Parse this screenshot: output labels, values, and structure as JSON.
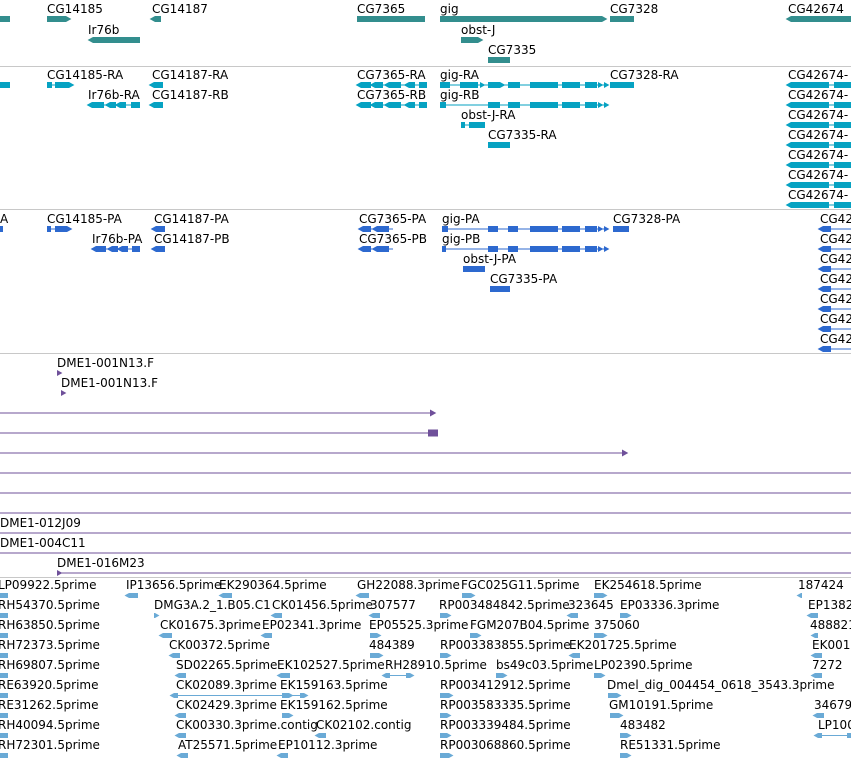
{
  "colors": {
    "gene": "#338e8e",
    "transcript": "#06a2c2",
    "protein": "#2d69cf",
    "clone": "#6f509a",
    "est": "#6aaad6",
    "divider": "#c8c8c8"
  },
  "tracks": [
    {
      "id": "genes",
      "color": "#338e8e",
      "features": [
        {
          "label": "CG14185"
        },
        {
          "label": "CG14187"
        },
        {
          "label": "Ir76b"
        },
        {
          "label": "CG7365"
        },
        {
          "label": "gig"
        },
        {
          "label": "obst-J"
        },
        {
          "label": "CG7335"
        },
        {
          "label": "CG7328"
        },
        {
          "label": "CG42674"
        }
      ]
    },
    {
      "id": "transcripts",
      "color": "#06a2c2",
      "features": [
        {
          "label": "CG14185-RA"
        },
        {
          "label": "CG14187-RA"
        },
        {
          "label": "CG14187-RB"
        },
        {
          "label": "Ir76b-RA"
        },
        {
          "label": "CG7365-RA"
        },
        {
          "label": "CG7365-RB"
        },
        {
          "label": "gig-RA"
        },
        {
          "label": "gig-RB"
        },
        {
          "label": "obst-J-RA"
        },
        {
          "label": "CG7335-RA"
        },
        {
          "label": "CG7328-RA"
        },
        {
          "label": "CG42674-"
        },
        {
          "label": "CG42674-"
        },
        {
          "label": "CG42674-"
        },
        {
          "label": "CG42674-"
        },
        {
          "label": "CG42674-"
        },
        {
          "label": "CG42674-"
        },
        {
          "label": "CG42674-"
        }
      ]
    },
    {
      "id": "proteins",
      "color": "#2d69cf",
      "features": [
        {
          "label": "A"
        },
        {
          "label": "CG14185-PA"
        },
        {
          "label": "CG14187-PA"
        },
        {
          "label": "CG14187-PB"
        },
        {
          "label": "Ir76b-PA"
        },
        {
          "label": "CG7365-PA"
        },
        {
          "label": "CG7365-PB"
        },
        {
          "label": "gig-PA"
        },
        {
          "label": "gig-PB"
        },
        {
          "label": "obst-J-PA"
        },
        {
          "label": "CG7335-PA"
        },
        {
          "label": "CG7328-PA"
        },
        {
          "label": "CG42"
        },
        {
          "label": "CG42"
        },
        {
          "label": "CG42"
        },
        {
          "label": "CG42"
        },
        {
          "label": "CG42"
        },
        {
          "label": "CG42"
        },
        {
          "label": "CG42"
        }
      ]
    },
    {
      "id": "clones",
      "color": "#6f509a",
      "features": [
        {
          "label": "DME1-001N13.F"
        },
        {
          "label": "DME1-001N13.F"
        },
        {
          "label": "DME1-012J09"
        },
        {
          "label": "DME1-004C11"
        },
        {
          "label": "DME1-016M23"
        }
      ]
    },
    {
      "id": "ests",
      "color": "#6aaad6",
      "features": [
        {
          "label": "LP09922.5prime"
        },
        {
          "label": "IP13656.5prime"
        },
        {
          "label": "EK290364.5prime"
        },
        {
          "label": "GH22088.3prime"
        },
        {
          "label": "FGC025G11.5prime"
        },
        {
          "label": "EK254618.5prime"
        },
        {
          "label": "187424"
        },
        {
          "label": "RH54370.5prime"
        },
        {
          "label": "DMG3A.2_1.B05.C1"
        },
        {
          "label": "CK01456.5prime"
        },
        {
          "label": "307577"
        },
        {
          "label": "RP003484842.5prime"
        },
        {
          "label": "323645"
        },
        {
          "label": "EP03336.3prime"
        },
        {
          "label": "EP1382"
        },
        {
          "label": "RH63850.5prime"
        },
        {
          "label": "CK01675.3prime"
        },
        {
          "label": "EP02341.3prime"
        },
        {
          "label": "EP05525.3prime"
        },
        {
          "label": "FGM207B04.5prime"
        },
        {
          "label": "375060"
        },
        {
          "label": "488821"
        },
        {
          "label": "RH72373.5prime"
        },
        {
          "label": "CK00372.5prime"
        },
        {
          "label": "484389"
        },
        {
          "label": "RP003383855.5prime"
        },
        {
          "label": "EK201725.5prime"
        },
        {
          "label": "EK001"
        },
        {
          "label": "RH69807.5prime"
        },
        {
          "label": "SD02265.5prime"
        },
        {
          "label": "EK102527.5prime"
        },
        {
          "label": "RH28910.5prime"
        },
        {
          "label": "bs49c03.5prime"
        },
        {
          "label": "LP02390.5prime"
        },
        {
          "label": "7272"
        },
        {
          "label": "RE63920.5prime"
        },
        {
          "label": "CK02089.3prime"
        },
        {
          "label": "EK159163.5prime"
        },
        {
          "label": "RP003412912.5prime"
        },
        {
          "label": "Dmel_dig_004454_0618_3543.3prime"
        },
        {
          "label": "RE31262.5prime"
        },
        {
          "label": "CK02429.3prime"
        },
        {
          "label": "EK159162.5prime"
        },
        {
          "label": "RP003583335.5prime"
        },
        {
          "label": "GM10191.5prime"
        },
        {
          "label": "34679"
        },
        {
          "label": "RH40094.5prime"
        },
        {
          "label": "CK00330.3prime.contig"
        },
        {
          "label": "CK02102.contig"
        },
        {
          "label": "RP003339484.5prime"
        },
        {
          "label": "483482"
        },
        {
          "label": "LP100"
        },
        {
          "label": "RH72301.5prime"
        },
        {
          "label": "AT25571.5prime"
        },
        {
          "label": "EP10112.3prime"
        },
        {
          "label": "RP003068860.5prime"
        },
        {
          "label": "RE51331.5prime"
        }
      ]
    }
  ]
}
